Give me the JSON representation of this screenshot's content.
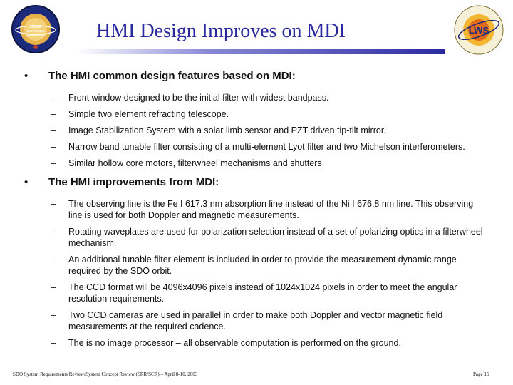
{
  "title": "HMI Design Improves on MDI",
  "logos": {
    "left_text": "SOLAR DYNAMICS OBSERVATORY",
    "right_text": "LWS",
    "left_icon": "sdo-logo",
    "right_icon": "lws-logo"
  },
  "bullet1": {
    "text": "The HMI common design features based on MDI:",
    "items": [
      "Front window designed to be the initial filter with widest bandpass.",
      "Simple two element refracting telescope.",
      "Image Stabilization System with a solar limb sensor and PZT driven tip-tilt mirror.",
      "Narrow band tunable filter consisting of a multi-element Lyot filter and two Michelson interferometers.",
      "Similar hollow core motors, filterwheel mechanisms and shutters."
    ]
  },
  "bullet2": {
    "text": "The HMI improvements from MDI:",
    "items": [
      "The observing line is the Fe I 617.3 nm absorption line instead of  the Ni I 676.8 nm line. This observing line is used for both Doppler and magnetic measurements.",
      "Rotating waveplates are used for polarization selection instead of a set of polarizing optics in a filterwheel mechanism.",
      "An additional tunable filter element is included in order to provide the measurement dynamic range required by the SDO orbit.",
      "The CCD format will be 4096x4096 pixels instead of 1024x1024 pixels in order to meet the angular resolution requirements.",
      "Two CCD cameras are used in parallel in order to make both Doppler and vector magnetic field measurements at the required cadence.",
      "The is no image processor – all observable computation is performed on the ground."
    ]
  },
  "footer": {
    "left": "SDO System Requirements Review/System Concept Review (SRR/SCR) – April 8-10, 2003",
    "right": "Page 15"
  },
  "symbols": {
    "bullet": "•",
    "dash": "–"
  }
}
